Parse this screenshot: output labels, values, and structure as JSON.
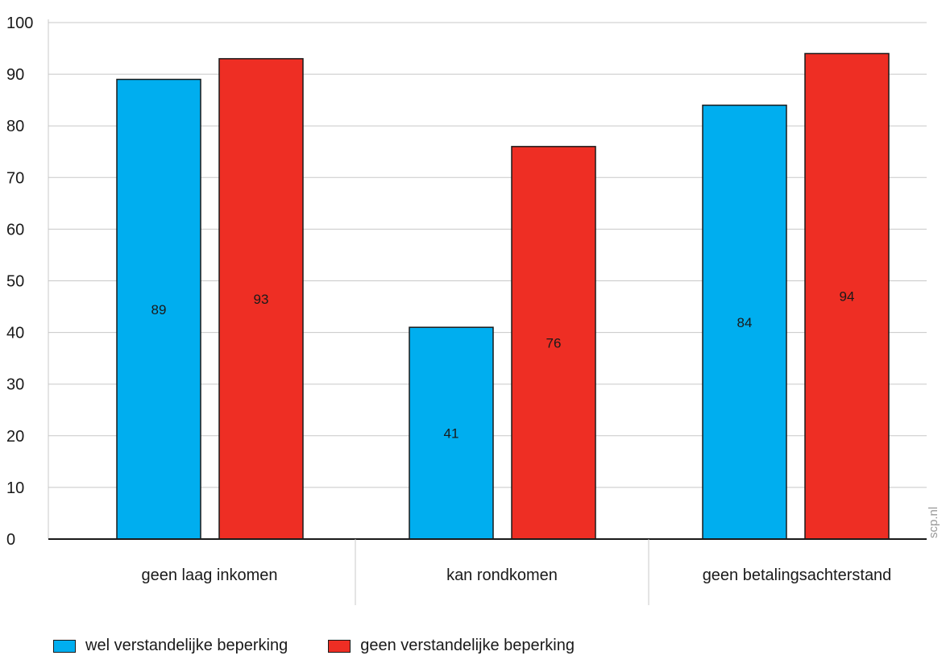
{
  "chart_data": {
    "type": "bar",
    "categories": [
      "geen laag inkomen",
      "kan rondkomen",
      "geen betalingsachterstand"
    ],
    "series": [
      {
        "name": "wel verstandelijke beperking",
        "values": [
          89,
          41,
          84
        ],
        "color": "#00aeef"
      },
      {
        "name": "geen verstandelijke beperking",
        "values": [
          93,
          76,
          94
        ],
        "color": "#ee2e24"
      }
    ],
    "ylim": [
      0,
      100
    ],
    "yticks": [
      0,
      10,
      20,
      30,
      40,
      50,
      60,
      70,
      80,
      90,
      100
    ],
    "grid": true,
    "legend_position": "bottom-left",
    "source": "scp.nl"
  }
}
